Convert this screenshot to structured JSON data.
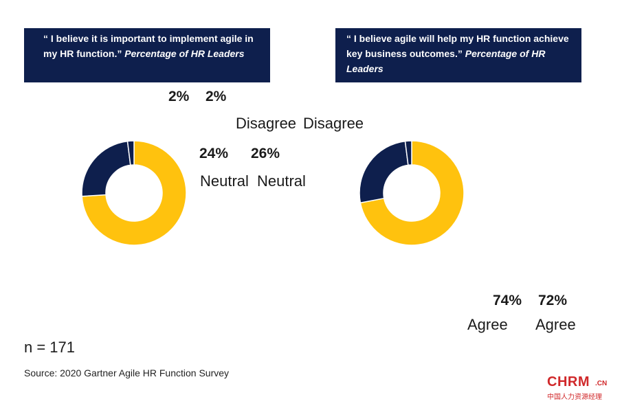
{
  "chart_data": [
    {
      "type": "pie",
      "title_quote": "“ I believe it is important to implement agile in my HR function.”",
      "title_sub": "Percentage of HR Leaders",
      "categories": [
        "Agree",
        "Neutral",
        "Disagree"
      ],
      "values": [
        74,
        24,
        2
      ],
      "value_labels": [
        "74%",
        "24%",
        "2%"
      ],
      "donut": true
    },
    {
      "type": "pie",
      "title_quote": "“ I believe agile will help my HR function achieve key business outcomes.”",
      "title_sub": "Percentage of HR Leaders",
      "categories": [
        "Agree",
        "Neutral",
        "Disagree"
      ],
      "values": [
        72,
        26,
        2
      ],
      "value_labels": [
        "72%",
        "26%",
        "2%"
      ],
      "donut": true
    }
  ],
  "colors": {
    "Agree": "#ffc20e",
    "Neutral": "#0e1f4d",
    "Disagree": "#0e1f4d",
    "box_bg": "#0e1f4d",
    "brand": "#d0282a"
  },
  "footer": {
    "n_label": "n = 171",
    "source": "Source: 2020  Gartner Agile HR Function Survey"
  },
  "logo": {
    "main": "CHRM",
    "suffix": ".CN",
    "sub": "中国人力资源经理"
  }
}
